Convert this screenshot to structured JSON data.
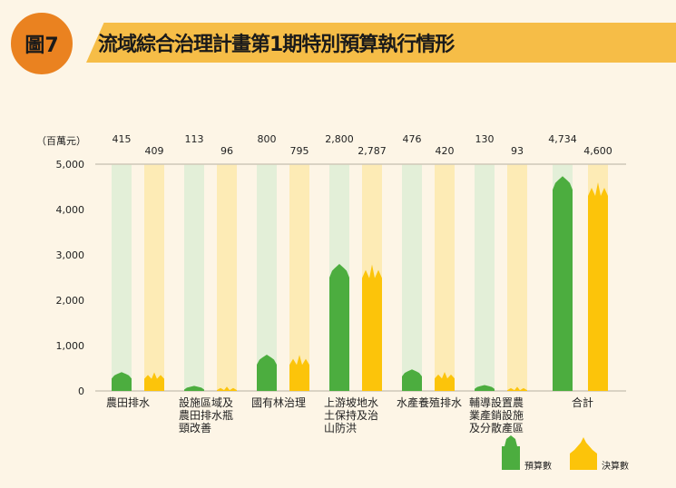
{
  "header": {
    "badge": "圖7",
    "title": "流域綜合治理計畫第1期特別預算執行情形"
  },
  "colors": {
    "budget": "#4cad3f",
    "final": "#fcc40a",
    "budget_track": "#e3efd8",
    "final_track": "#fdebb5",
    "badge": "#ea8220",
    "banner": "#f6bd47"
  },
  "chart_data": {
    "type": "bar",
    "unit_label": "（百萬元）",
    "categories": [
      "農田排水",
      "設施區域及農田排水瓶頸改善",
      "國有林治理",
      "上游坡地水土保持及治山防洪",
      "水產養殖排水",
      "輔導設置農業產銷設施及分散產區",
      "合計"
    ],
    "category_lines": [
      [
        "農田排水"
      ],
      [
        "設施區域及",
        "農田排水瓶",
        "頸改善"
      ],
      [
        "國有林治理"
      ],
      [
        "上游坡地水",
        "土保持及治",
        "山防洪"
      ],
      [
        "水產養殖排水"
      ],
      [
        "輔導設置農",
        "業產銷設施",
        "及分散產區"
      ],
      [
        "合計"
      ]
    ],
    "series": [
      {
        "name": "預算數",
        "icon": "corn-icon",
        "values": [
          415,
          113,
          800,
          2800,
          476,
          130,
          4734
        ],
        "labels": [
          "415",
          "113",
          "800",
          "2,800",
          "476",
          "130",
          "4,734"
        ]
      },
      {
        "name": "決算數",
        "icon": "wheat-icon",
        "values": [
          409,
          96,
          795,
          2787,
          420,
          93,
          4600
        ],
        "labels": [
          "409",
          "96",
          "795",
          "2,787",
          "420",
          "93",
          "4,600"
        ]
      }
    ],
    "ylim": [
      0,
      5000
    ],
    "yticks": [
      0,
      1000,
      2000,
      3000,
      4000,
      5000
    ],
    "ytick_labels": [
      "0",
      "1,000",
      "2,000",
      "3,000",
      "4,000",
      "5,000"
    ],
    "legend": "bottom-right"
  }
}
